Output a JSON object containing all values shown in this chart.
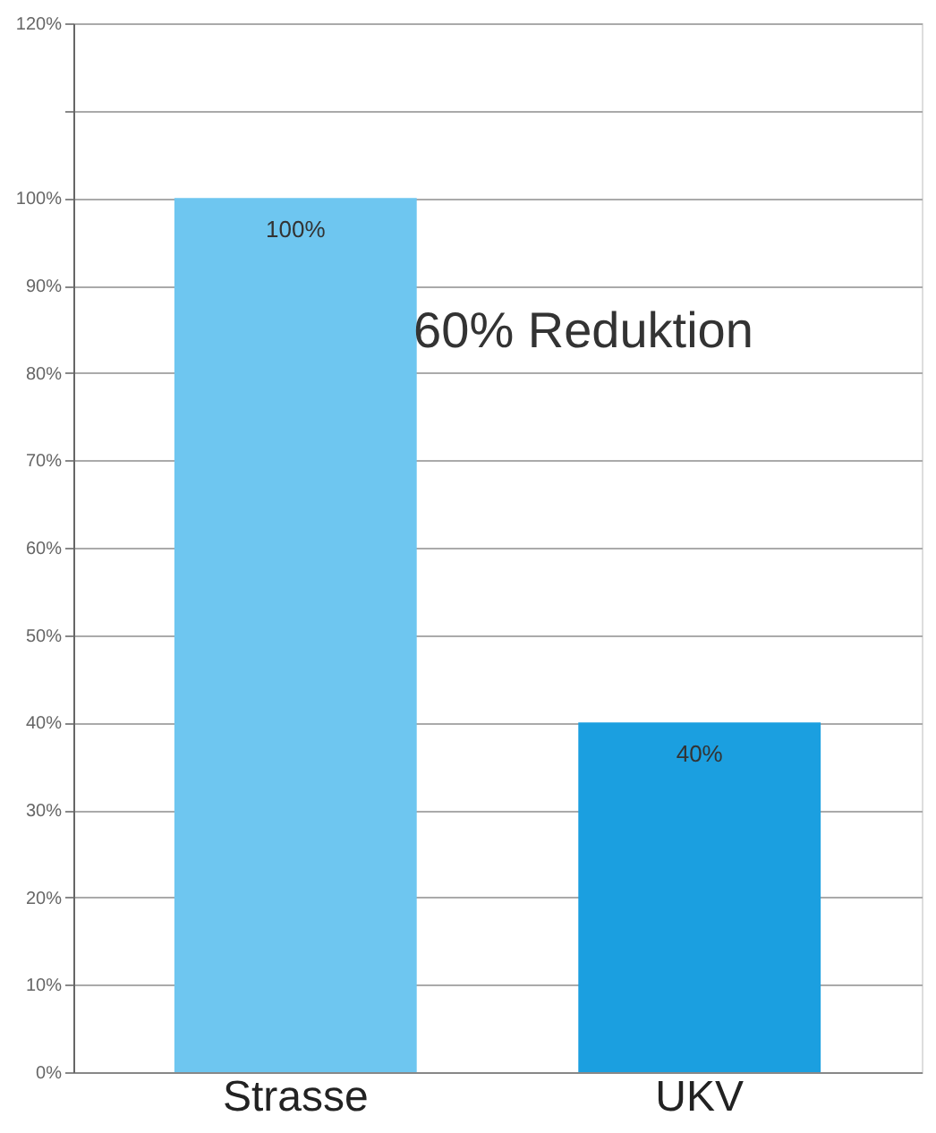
{
  "chart_data": {
    "type": "bar",
    "categories": [
      "Strasse",
      "UKV"
    ],
    "values": [
      100,
      40
    ],
    "colors": [
      "#6ec6f0",
      "#1b9fe0"
    ],
    "value_labels": [
      "100%",
      "40%"
    ],
    "ylim": [
      0,
      120
    ],
    "yticks": [
      {
        "value": 0,
        "label": "0%"
      },
      {
        "value": 10,
        "label": "10%"
      },
      {
        "value": 20,
        "label": "20%"
      },
      {
        "value": 30,
        "label": "30%"
      },
      {
        "value": 40,
        "label": "40%"
      },
      {
        "value": 50,
        "label": "50%"
      },
      {
        "value": 60,
        "label": "60%"
      },
      {
        "value": 70,
        "label": "70%"
      },
      {
        "value": 80,
        "label": "80%"
      },
      {
        "value": 90,
        "label": "90%"
      },
      {
        "value": 100,
        "label": "100%"
      },
      {
        "value": 110,
        "label": null
      },
      {
        "value": 120,
        "label": "120%"
      }
    ],
    "grid": "y",
    "annotations": [
      "60% Reduktion"
    ]
  }
}
